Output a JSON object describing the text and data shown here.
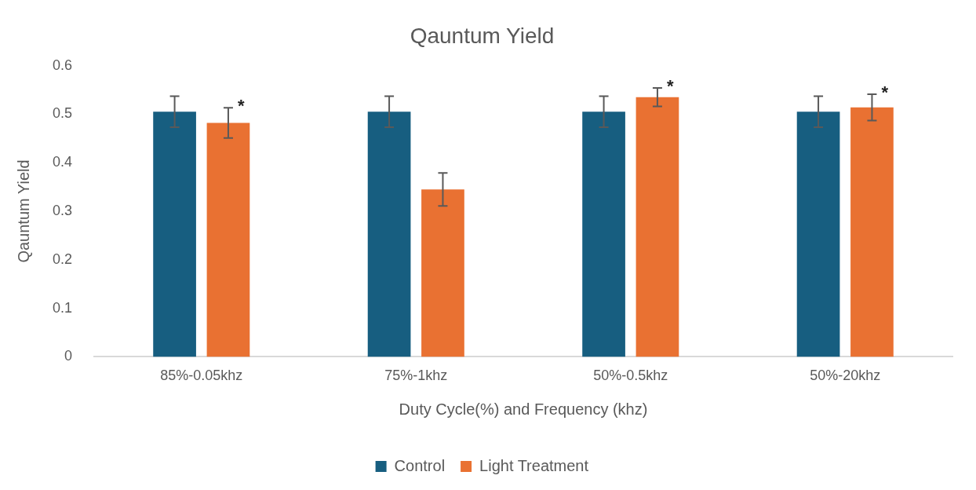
{
  "chart_data": {
    "type": "bar",
    "title": "Qauntum Yield",
    "xlabel": "Duty Cycle(%) and Frequency (khz)",
    "ylabel": "Qauntum Yield",
    "categories": [
      "85%-0.05khz",
      "75%-1khz",
      "50%-0.5khz",
      "50%-20khz"
    ],
    "series": [
      {
        "name": "Control",
        "color": "#175e80",
        "values": [
          0.505,
          0.505,
          0.505,
          0.505
        ],
        "errors": [
          0.032,
          0.032,
          0.032,
          0.032
        ]
      },
      {
        "name": "Light Treatment",
        "color": "#e97132",
        "values": [
          0.482,
          0.345,
          0.535,
          0.514
        ],
        "errors": [
          0.031,
          0.034,
          0.019,
          0.027
        ],
        "value_labels": [
          "*",
          null,
          "*",
          "*"
        ]
      }
    ],
    "ylim": [
      0,
      0.6
    ],
    "yticks": [
      0,
      0.1,
      0.2,
      0.3,
      0.4,
      0.5,
      0.6
    ],
    "grid": false,
    "legend": "bottom"
  }
}
